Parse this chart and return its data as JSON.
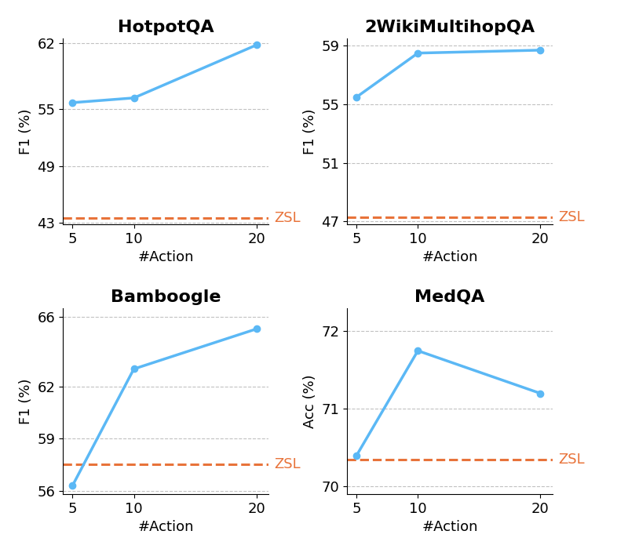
{
  "subplots": [
    {
      "title": "HotpotQA",
      "ylabel": "F1 (%)",
      "xlabel": "#Action",
      "x": [
        5,
        10,
        20
      ],
      "y": [
        55.7,
        56.2,
        61.8
      ],
      "zsl": 43.5,
      "ylim": [
        42.8,
        62.5
      ],
      "yticks": [
        43,
        49,
        55,
        62
      ]
    },
    {
      "title": "2WikiMultihopQA",
      "ylabel": "F1 (%)",
      "xlabel": "#Action",
      "x": [
        5,
        10,
        20
      ],
      "y": [
        55.5,
        58.5,
        58.7
      ],
      "zsl": 47.3,
      "ylim": [
        46.8,
        59.5
      ],
      "yticks": [
        47,
        51,
        55,
        59
      ]
    },
    {
      "title": "Bamboogle",
      "ylabel": "F1 (%)",
      "xlabel": "#Action",
      "x": [
        5,
        10,
        20
      ],
      "y": [
        56.3,
        63.0,
        65.3
      ],
      "zsl": 57.5,
      "ylim": [
        55.8,
        66.5
      ],
      "yticks": [
        56,
        59,
        62,
        66
      ]
    },
    {
      "title": "MedQA",
      "ylabel": "Acc (%)",
      "xlabel": "#Action",
      "x": [
        5,
        10,
        20
      ],
      "y": [
        70.4,
        71.75,
        71.2
      ],
      "zsl": 70.35,
      "ylim": [
        69.9,
        72.3
      ],
      "yticks": [
        70,
        71,
        72
      ]
    }
  ],
  "line_color": "#5BB8F5",
  "zsl_color": "#E8733A",
  "line_width": 2.5,
  "marker": "o",
  "marker_size": 6,
  "title_fontsize": 16,
  "label_fontsize": 13,
  "tick_fontsize": 13,
  "zsl_label_fontsize": 13,
  "grid_color": "#BBBBBB",
  "background_color": "#FFFFFF"
}
